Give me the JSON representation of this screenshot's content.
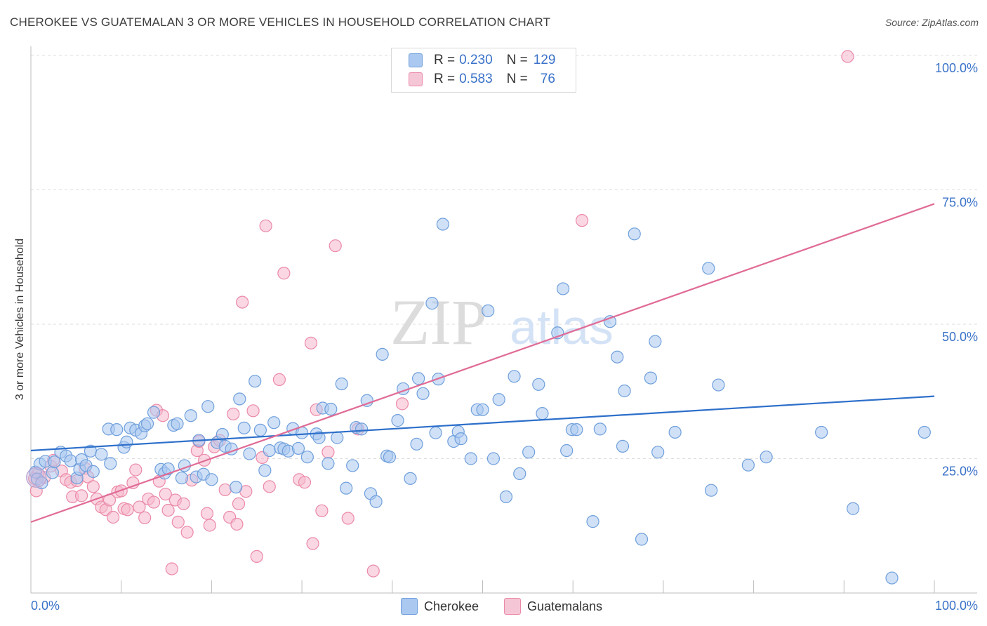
{
  "title": "CHEROKEE VS GUATEMALAN 3 OR MORE VEHICLES IN HOUSEHOLD CORRELATION CHART",
  "source": "Source: ZipAtlas.com",
  "watermark": {
    "zip": "ZIP",
    "atlas": "atlas"
  },
  "legend": {
    "rows": [
      {
        "r_label": "R = ",
        "r_value": "0.230",
        "n_label": "N = ",
        "n_value": "129"
      },
      {
        "r_label": "R = ",
        "r_value": "0.583",
        "n_label": "N = ",
        "n_value": "76"
      }
    ]
  },
  "colors": {
    "cherokee_fill": "#aac8f0",
    "cherokee_stroke": "#6f9fdc",
    "cherokee_line": "#2d6fca",
    "guatemalan_fill": "#f5b7cb",
    "guatemalan_stroke": "#eb8aa8",
    "guatemalan_line": "#e06b96",
    "tick_text": "#3a72c8",
    "grid": "#dedede"
  },
  "chart_data": {
    "type": "scatter",
    "title": "CHEROKEE VS GUATEMALAN 3 OR MORE VEHICLES IN HOUSEHOLD CORRELATION CHART",
    "xlabel": "",
    "ylabel": "3 or more Vehicles in Household",
    "xlim": [
      0,
      100
    ],
    "ylim": [
      0,
      100
    ],
    "x_tick_labels": [
      "0.0%",
      "100.0%"
    ],
    "y_ticks": [
      25,
      50,
      75,
      100
    ],
    "y_tick_labels": [
      "25.0%",
      "50.0%",
      "75.0%",
      "100.0%"
    ],
    "grid": true,
    "legend_position": "top-center",
    "series": [
      {
        "name": "Cherokee",
        "R": 0.23,
        "N": 129,
        "trend": {
          "x": [
            0,
            100
          ],
          "y": [
            26.5,
            36.6
          ]
        },
        "points": [
          [
            0.5,
            22.5
          ],
          [
            0.7,
            21.2
          ],
          [
            1,
            24
          ],
          [
            1.2,
            20.5
          ],
          [
            1.6,
            24.5
          ],
          [
            2.4,
            22.4
          ],
          [
            2.6,
            24.4
          ],
          [
            3.3,
            26.2
          ],
          [
            3.9,
            25.5
          ],
          [
            4.4,
            24.6
          ],
          [
            5.1,
            21.4
          ],
          [
            5.4,
            23
          ],
          [
            5.6,
            24.8
          ],
          [
            6.1,
            23.7
          ],
          [
            6.6,
            26.4
          ],
          [
            6.9,
            22.6
          ],
          [
            7.8,
            25.8
          ],
          [
            8.6,
            30.5
          ],
          [
            8.8,
            24.1
          ],
          [
            9.5,
            30.4
          ],
          [
            10.3,
            27.1
          ],
          [
            10.6,
            28.1
          ],
          [
            11,
            30.7
          ],
          [
            11.6,
            30.3
          ],
          [
            12.2,
            29.7
          ],
          [
            12.6,
            31.1
          ],
          [
            12.9,
            31.5
          ],
          [
            13.6,
            33.6
          ],
          [
            14.4,
            23
          ],
          [
            14.8,
            22.3
          ],
          [
            15.2,
            23.1
          ],
          [
            15.8,
            31.2
          ],
          [
            16.2,
            31.5
          ],
          [
            16.7,
            21.4
          ],
          [
            17,
            23.7
          ],
          [
            17.7,
            33
          ],
          [
            18.3,
            21.6
          ],
          [
            18.6,
            28.4
          ],
          [
            19.1,
            22.1
          ],
          [
            19.6,
            34.7
          ],
          [
            20,
            21.1
          ],
          [
            20.6,
            28
          ],
          [
            21.2,
            29.5
          ],
          [
            21.5,
            27.3
          ],
          [
            22.2,
            26.8
          ],
          [
            22.7,
            19.7
          ],
          [
            23.1,
            36.1
          ],
          [
            23.6,
            30.7
          ],
          [
            24.2,
            25.9
          ],
          [
            24.8,
            39.4
          ],
          [
            25.4,
            30.3
          ],
          [
            25.9,
            22.8
          ],
          [
            26.4,
            26.5
          ],
          [
            26.9,
            31.7
          ],
          [
            27.6,
            27
          ],
          [
            28,
            26.8
          ],
          [
            28.5,
            26.4
          ],
          [
            29,
            30.6
          ],
          [
            29.6,
            26.9
          ],
          [
            30,
            29.8
          ],
          [
            30.6,
            25.3
          ],
          [
            31.6,
            29.6
          ],
          [
            31.9,
            28.9
          ],
          [
            32.3,
            34.4
          ],
          [
            32.9,
            24.1
          ],
          [
            33.2,
            34.2
          ],
          [
            33.9,
            28.9
          ],
          [
            34.4,
            38.9
          ],
          [
            34.9,
            19.5
          ],
          [
            35.6,
            23.7
          ],
          [
            36,
            30.8
          ],
          [
            36.6,
            30.5
          ],
          [
            37.2,
            35.8
          ],
          [
            37.6,
            18.5
          ],
          [
            38.2,
            17
          ],
          [
            38.9,
            44.4
          ],
          [
            39.4,
            25.5
          ],
          [
            39.7,
            25.3
          ],
          [
            40.6,
            32.1
          ],
          [
            41.2,
            38
          ],
          [
            42,
            21.3
          ],
          [
            42.7,
            27.7
          ],
          [
            42.9,
            39.9
          ],
          [
            43.4,
            37.1
          ],
          [
            44.4,
            53.9
          ],
          [
            44.8,
            29.8
          ],
          [
            45.1,
            39.8
          ],
          [
            45.6,
            68.6
          ],
          [
            46.8,
            28.2
          ],
          [
            47.3,
            30
          ],
          [
            47.6,
            28.7
          ],
          [
            48.7,
            25
          ],
          [
            49.4,
            34.1
          ],
          [
            50,
            34.1
          ],
          [
            50.6,
            52.5
          ],
          [
            51.2,
            25
          ],
          [
            51.8,
            36
          ],
          [
            52.6,
            17.9
          ],
          [
            53.5,
            40.3
          ],
          [
            54.1,
            22.2
          ],
          [
            55.1,
            26.2
          ],
          [
            56.2,
            38.8
          ],
          [
            56.6,
            33.4
          ],
          [
            58.3,
            48.4
          ],
          [
            58.9,
            56.6
          ],
          [
            59.3,
            26.5
          ],
          [
            59.9,
            30.4
          ],
          [
            60.4,
            30.4
          ],
          [
            62.2,
            13.3
          ],
          [
            63,
            30.5
          ],
          [
            64.1,
            50.5
          ],
          [
            64.9,
            43.9
          ],
          [
            65.5,
            27.3
          ],
          [
            65.7,
            37.6
          ],
          [
            66.8,
            66.8
          ],
          [
            67.6,
            10
          ],
          [
            68.6,
            40
          ],
          [
            69.1,
            46.8
          ],
          [
            69.4,
            26.2
          ],
          [
            71.3,
            29.9
          ],
          [
            75,
            60.4
          ],
          [
            75.3,
            19.1
          ],
          [
            76.1,
            38.7
          ],
          [
            79.4,
            23.8
          ],
          [
            81.4,
            25.3
          ],
          [
            87.5,
            29.9
          ],
          [
            91,
            15.7
          ],
          [
            95.3,
            2.8
          ],
          [
            98.9,
            29.9
          ]
        ]
      },
      {
        "name": "Guatemalans",
        "R": 0.583,
        "N": 76,
        "trend": {
          "x": [
            0,
            100
          ],
          "y": [
            13.2,
            72.4
          ]
        },
        "points": [
          [
            0.4,
            21.3
          ],
          [
            0.6,
            19
          ],
          [
            0.8,
            22.2
          ],
          [
            1.5,
            21.5
          ],
          [
            2.2,
            23.6
          ],
          [
            2.5,
            24.7
          ],
          [
            3.4,
            22.7
          ],
          [
            3.9,
            21.1
          ],
          [
            4.4,
            20.6
          ],
          [
            4.6,
            17.9
          ],
          [
            5.1,
            20.9
          ],
          [
            5.6,
            18.1
          ],
          [
            6,
            23.2
          ],
          [
            6.3,
            21.6
          ],
          [
            6.9,
            19.8
          ],
          [
            7.3,
            17.5
          ],
          [
            7.8,
            16
          ],
          [
            8.3,
            15.5
          ],
          [
            8.7,
            17.3
          ],
          [
            9.1,
            14.1
          ],
          [
            9.6,
            18.8
          ],
          [
            10,
            19
          ],
          [
            10.3,
            15.7
          ],
          [
            10.7,
            15.5
          ],
          [
            11.3,
            20.5
          ],
          [
            11.6,
            22.9
          ],
          [
            12,
            16
          ],
          [
            12.6,
            14
          ],
          [
            13,
            17.5
          ],
          [
            13.6,
            16.9
          ],
          [
            13.9,
            34
          ],
          [
            14.2,
            20.8
          ],
          [
            14.6,
            33
          ],
          [
            14.9,
            18.4
          ],
          [
            15.2,
            15.4
          ],
          [
            15.6,
            4.5
          ],
          [
            16,
            17.3
          ],
          [
            16.3,
            13.2
          ],
          [
            16.9,
            16.6
          ],
          [
            17.3,
            11.3
          ],
          [
            17.8,
            21
          ],
          [
            18.4,
            26.5
          ],
          [
            18.6,
            28.2
          ],
          [
            19.2,
            24.7
          ],
          [
            19.5,
            14.8
          ],
          [
            19.8,
            12.6
          ],
          [
            20.3,
            27.2
          ],
          [
            20.9,
            28.4
          ],
          [
            21.5,
            19.2
          ],
          [
            22,
            14.1
          ],
          [
            22.4,
            33.3
          ],
          [
            22.8,
            12.8
          ],
          [
            23,
            16.6
          ],
          [
            23.4,
            54.1
          ],
          [
            23.8,
            18.9
          ],
          [
            24.6,
            33.9
          ],
          [
            25,
            6.8
          ],
          [
            25.6,
            25.2
          ],
          [
            26,
            68.3
          ],
          [
            26.4,
            19.8
          ],
          [
            27.5,
            39.7
          ],
          [
            28,
            59.5
          ],
          [
            29.7,
            21.1
          ],
          [
            30.3,
            20.6
          ],
          [
            31,
            46.5
          ],
          [
            31.2,
            9.2
          ],
          [
            31.6,
            34.1
          ],
          [
            32.2,
            15.3
          ],
          [
            32.9,
            26.2
          ],
          [
            33.7,
            64.6
          ],
          [
            35.1,
            13.9
          ],
          [
            36.2,
            30.5
          ],
          [
            37.9,
            4.1
          ],
          [
            41.1,
            35.2
          ],
          [
            61,
            69.3
          ],
          [
            90.4,
            99.8
          ]
        ]
      }
    ]
  },
  "bottom_legend": {
    "items": [
      "Cherokee",
      "Guatemalans"
    ]
  }
}
